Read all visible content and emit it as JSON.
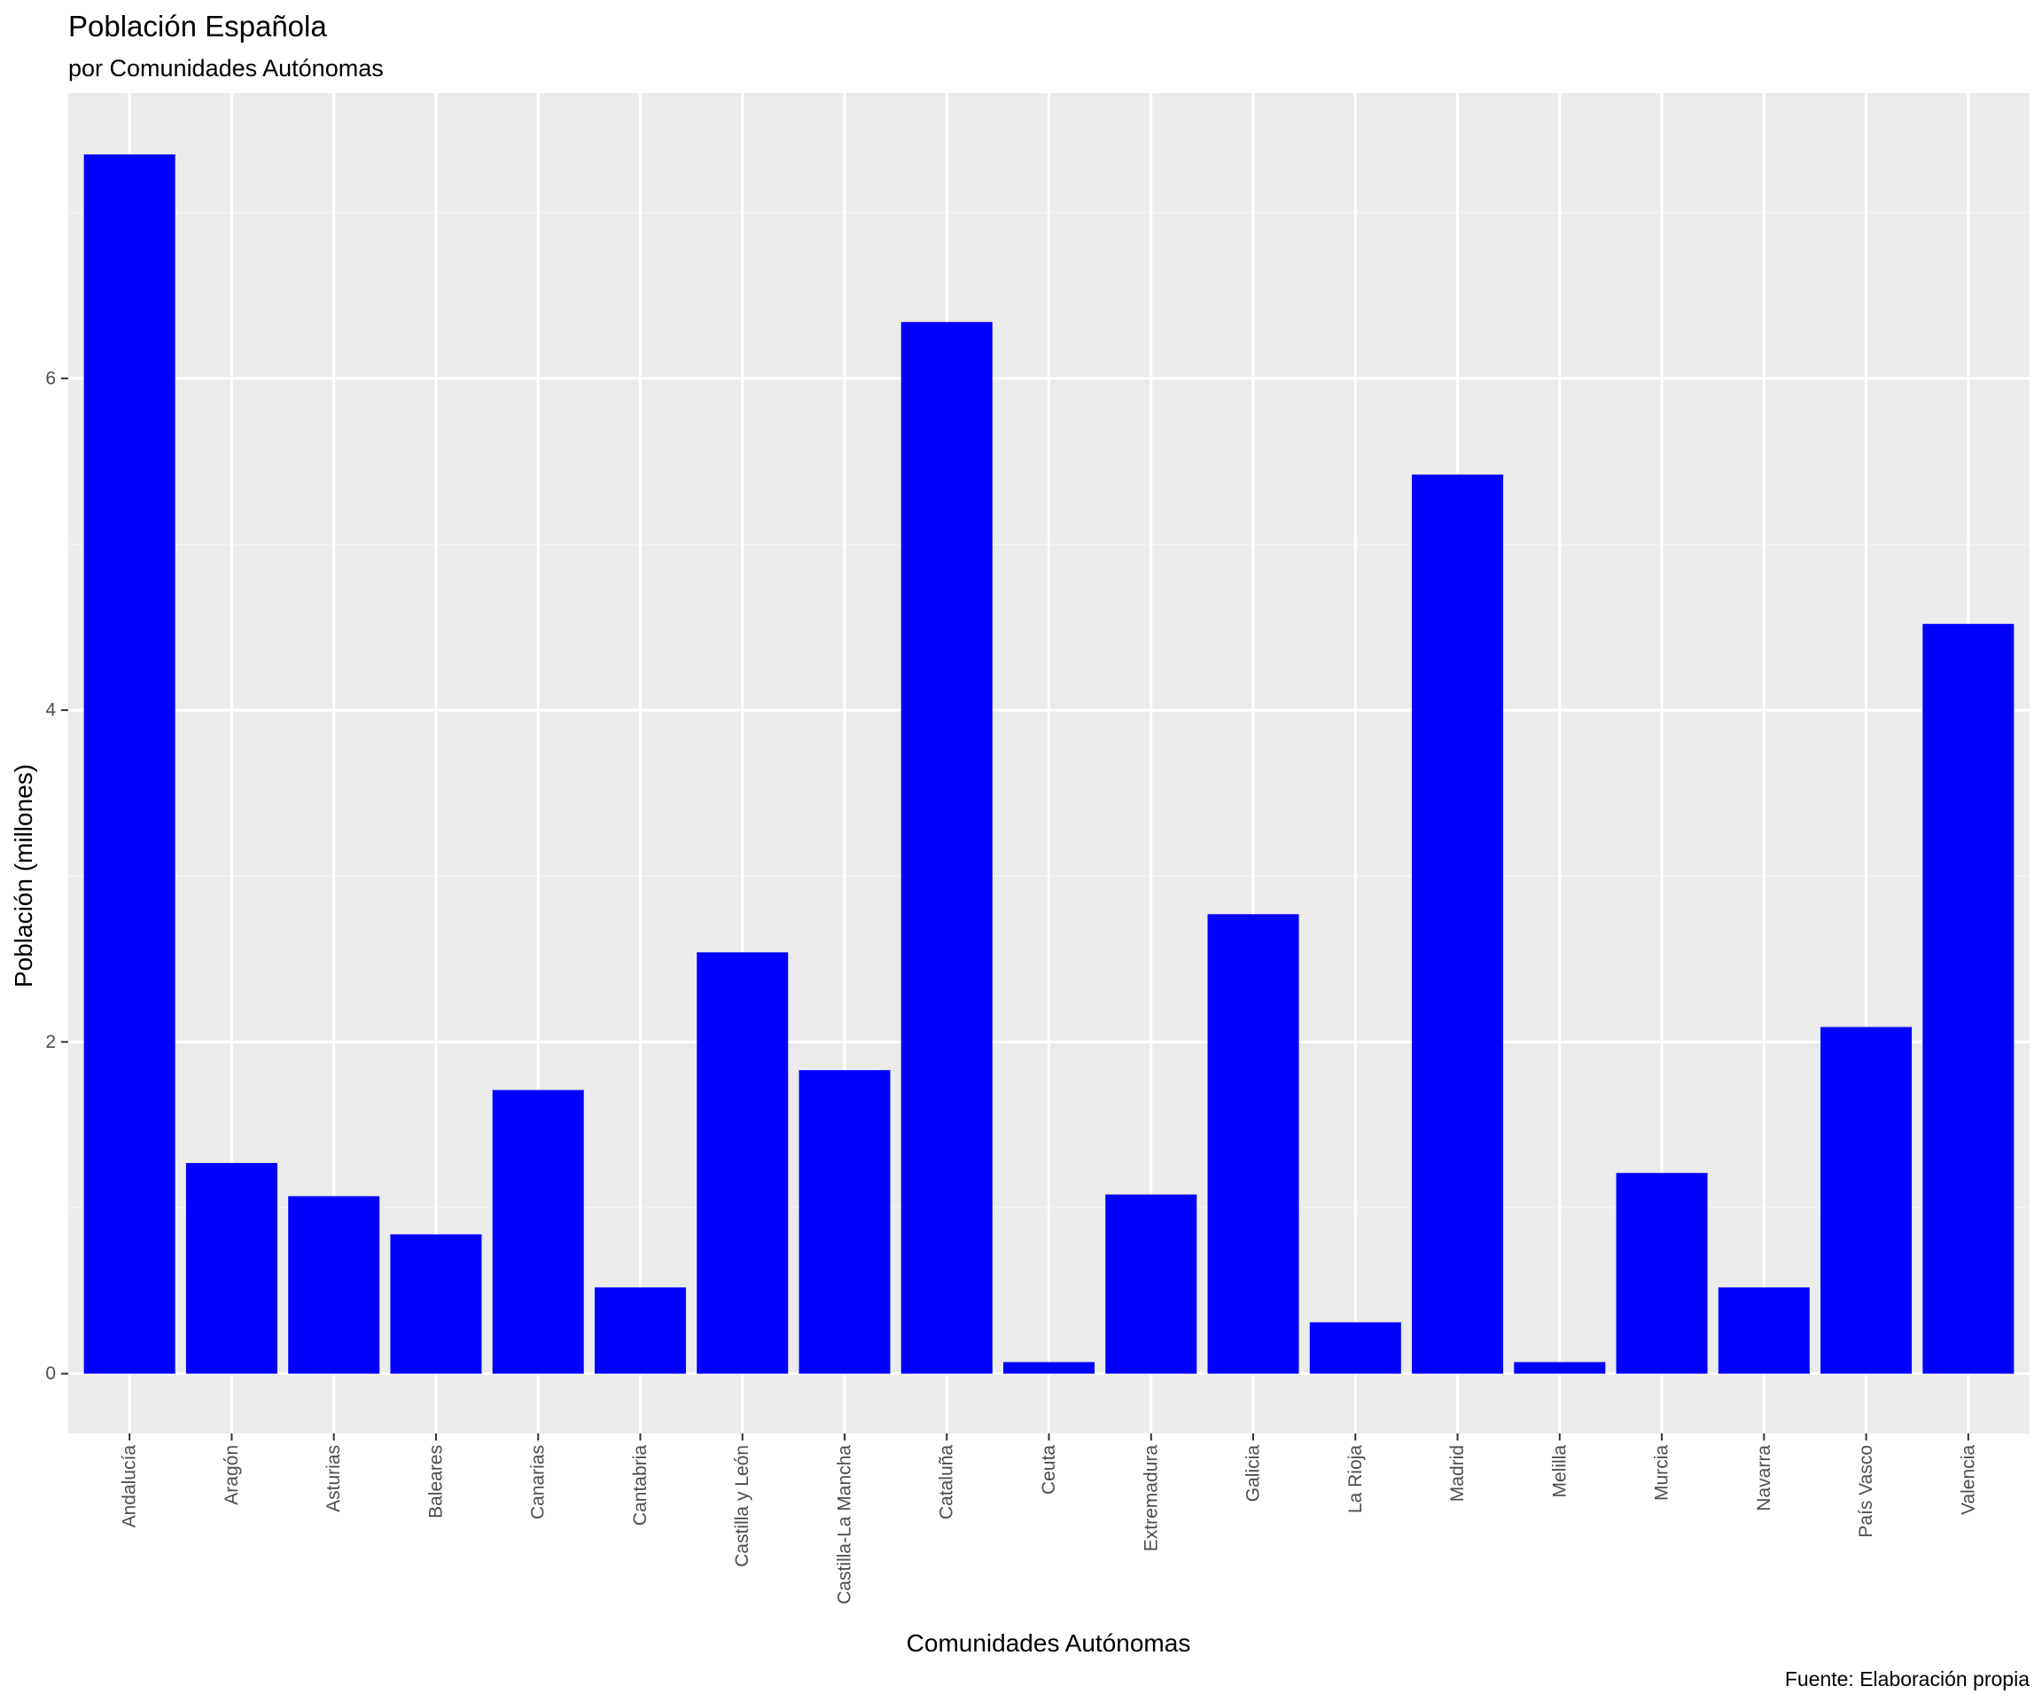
{
  "chart_data": {
    "type": "bar",
    "title": "Población Española",
    "subtitle": "por Comunidades Autónomas",
    "xlabel": "Comunidades Autónomas",
    "ylabel": "Población (millones)",
    "caption": "Fuente: Elaboración propia",
    "categories": [
      "Andalucía",
      "Aragón",
      "Asturias",
      "Baleares",
      "Canarias",
      "Cantabria",
      "Castilla y León",
      "Castilla-La Mancha",
      "Cataluña",
      "Ceuta",
      "Extremadura",
      "Galicia",
      "La Rioja",
      "Madrid",
      "Melilla",
      "Murcia",
      "Navarra",
      "País Vasco",
      "Valencia"
    ],
    "values": [
      7.35,
      1.27,
      1.07,
      0.84,
      1.71,
      0.52,
      2.54,
      1.83,
      6.34,
      0.07,
      1.08,
      2.77,
      0.31,
      5.42,
      0.07,
      1.21,
      0.52,
      2.09,
      4.52
    ],
    "ylim": [
      -0.36,
      7.72
    ],
    "yticks": [
      0,
      2,
      4,
      6
    ],
    "grid": true,
    "legend": "none",
    "colors": {
      "bar": "#0000ff",
      "panel": "#ebebeb",
      "grid_major": "#ffffff",
      "grid_minor": "#f4f4f4",
      "tick_text": "#4d4d4d",
      "tick_mark": "#333333"
    }
  }
}
